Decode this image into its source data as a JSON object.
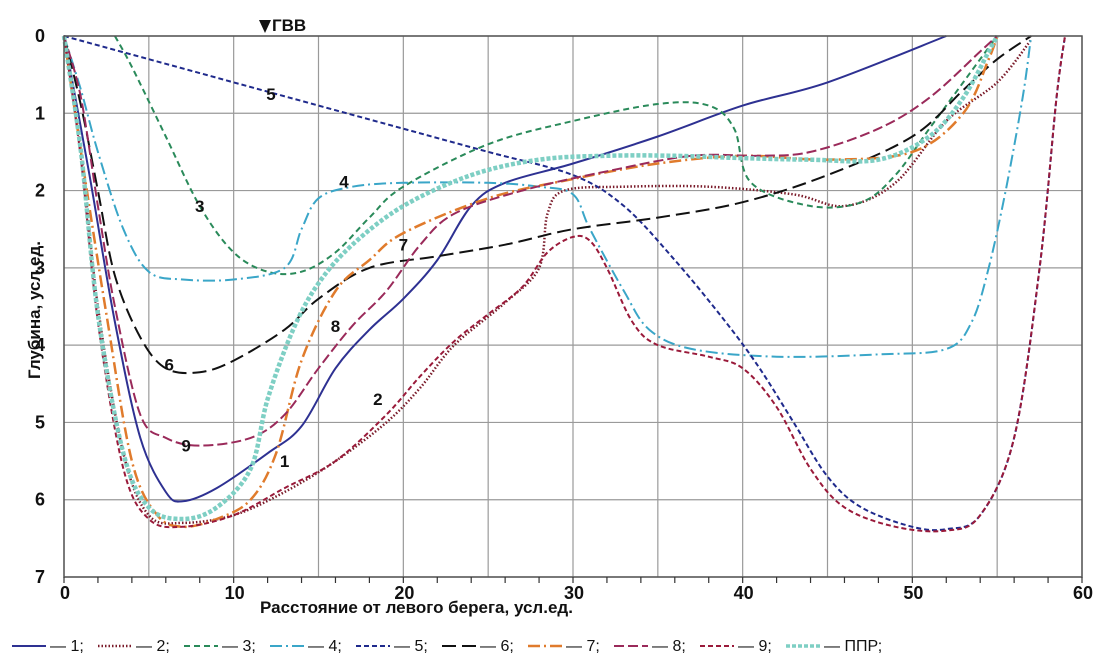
{
  "chart_data": {
    "type": "line",
    "xlabel": "Расстояние от левого берега, усл.ед.",
    "ylabel": "Глубина, усл.ед.",
    "xlim": [
      0,
      60
    ],
    "ylim": [
      0,
      7
    ],
    "y_inverted": true,
    "grid": true,
    "x_ticks": [
      "0",
      "10",
      "20",
      "30",
      "40",
      "50",
      "60"
    ],
    "y_ticks": [
      "0",
      "1",
      "2",
      "3",
      "4",
      "5",
      "6",
      "7"
    ],
    "marker": {
      "label": "ГВВ",
      "x": 12
    },
    "legend_position": "bottom",
    "series": [
      {
        "name": "— 1;",
        "label": "1",
        "label_pos": [
          13,
          5.5
        ],
        "color": "#2e3192",
        "dash": "",
        "width": 2,
        "points": [
          [
            0,
            0
          ],
          [
            1.5,
            1.8
          ],
          [
            3,
            3.7
          ],
          [
            4.5,
            5.2
          ],
          [
            6,
            5.9
          ],
          [
            7,
            6.02
          ],
          [
            9,
            5.85
          ],
          [
            12,
            5.4
          ],
          [
            14,
            5.05
          ],
          [
            16,
            4.3
          ],
          [
            18,
            3.8
          ],
          [
            20,
            3.4
          ],
          [
            22,
            2.9
          ],
          [
            24,
            2.2
          ],
          [
            26,
            1.9
          ],
          [
            30,
            1.65
          ],
          [
            35,
            1.3
          ],
          [
            40,
            0.9
          ],
          [
            45,
            0.6
          ],
          [
            52,
            0
          ]
        ]
      },
      {
        "name": "— 2;",
        "label": "2",
        "label_pos": [
          18.5,
          4.7
        ],
        "color": "#7a1b2a",
        "dash": "1.5 2",
        "width": 2.5,
        "points": [
          [
            0,
            0
          ],
          [
            1,
            1.5
          ],
          [
            2,
            3.5
          ],
          [
            3.5,
            5.4
          ],
          [
            5,
            6.2
          ],
          [
            7,
            6.3
          ],
          [
            10,
            6.2
          ],
          [
            13,
            5.9
          ],
          [
            16,
            5.5
          ],
          [
            19,
            5.0
          ],
          [
            21,
            4.55
          ],
          [
            23,
            4.0
          ],
          [
            26,
            3.45
          ],
          [
            28,
            3.0
          ],
          [
            28.5,
            2.3
          ],
          [
            29.5,
            2.0
          ],
          [
            33,
            1.95
          ],
          [
            38,
            1.95
          ],
          [
            43,
            2.05
          ],
          [
            46,
            2.2
          ],
          [
            49,
            1.9
          ],
          [
            52,
            1.1
          ],
          [
            55,
            0.6
          ],
          [
            57,
            0.05
          ]
        ]
      },
      {
        "name": "— 3;",
        "label": "3",
        "label_pos": [
          8,
          2.2
        ],
        "color": "#2a8a5a",
        "dash": "6 4",
        "width": 2,
        "points": [
          [
            3,
            0
          ],
          [
            4,
            0.4
          ],
          [
            6,
            1.3
          ],
          [
            8,
            2.2
          ],
          [
            10,
            2.8
          ],
          [
            12,
            3.05
          ],
          [
            14,
            3.05
          ],
          [
            16,
            2.8
          ],
          [
            18,
            2.35
          ],
          [
            20,
            1.95
          ],
          [
            25,
            1.4
          ],
          [
            30,
            1.1
          ],
          [
            35,
            0.88
          ],
          [
            38,
            0.9
          ],
          [
            39.5,
            1.2
          ],
          [
            40.5,
            1.9
          ],
          [
            44,
            2.2
          ],
          [
            47,
            2.15
          ],
          [
            49,
            1.8
          ],
          [
            51,
            1.2
          ],
          [
            53,
            0.6
          ],
          [
            55,
            0
          ]
        ]
      },
      {
        "name": "— 4;",
        "label": "4",
        "label_pos": [
          16.5,
          1.88
        ],
        "color": "#3aa6c8",
        "dash": "12 4 2 4",
        "width": 2,
        "points": [
          [
            0,
            0
          ],
          [
            1,
            0.7
          ],
          [
            2,
            1.5
          ],
          [
            3.5,
            2.5
          ],
          [
            5,
            3.05
          ],
          [
            7,
            3.15
          ],
          [
            10,
            3.15
          ],
          [
            13,
            3.0
          ],
          [
            14,
            2.5
          ],
          [
            15,
            2.1
          ],
          [
            17,
            1.95
          ],
          [
            20,
            1.9
          ],
          [
            25,
            1.9
          ],
          [
            28,
            1.95
          ],
          [
            30,
            2.05
          ],
          [
            31,
            2.5
          ],
          [
            33,
            3.3
          ],
          [
            34.5,
            3.8
          ],
          [
            37,
            4.05
          ],
          [
            42,
            4.15
          ],
          [
            48,
            4.12
          ],
          [
            52,
            4.05
          ],
          [
            53.5,
            3.7
          ],
          [
            54.5,
            3.0
          ],
          [
            55.5,
            2.0
          ],
          [
            56.5,
            0.8
          ],
          [
            57,
            0
          ]
        ]
      },
      {
        "name": "— 5;",
        "label": "5",
        "label_pos": [
          12.2,
          0.75
        ],
        "color": "#1f2a8c",
        "dash": "5 3",
        "width": 2,
        "points": [
          [
            0,
            0
          ],
          [
            5,
            0.3
          ],
          [
            10,
            0.6
          ],
          [
            15,
            0.9
          ],
          [
            20,
            1.2
          ],
          [
            25,
            1.5
          ],
          [
            30,
            1.8
          ],
          [
            33,
            2.2
          ],
          [
            36,
            2.9
          ],
          [
            39,
            3.7
          ],
          [
            41,
            4.3
          ],
          [
            43,
            5.0
          ],
          [
            45,
            5.7
          ],
          [
            47,
            6.1
          ],
          [
            50,
            6.35
          ],
          [
            52,
            6.38
          ],
          [
            54,
            6.2
          ],
          [
            56,
            5.2
          ],
          [
            57.5,
            3.0
          ],
          [
            58.5,
            0.8
          ],
          [
            59,
            0
          ]
        ]
      },
      {
        "name": "— 6;",
        "label": "6",
        "label_pos": [
          6.2,
          4.25
        ],
        "color": "#111111",
        "dash": "14 6",
        "width": 2,
        "points": [
          [
            0,
            0
          ],
          [
            1,
            0.9
          ],
          [
            2,
            2.0
          ],
          [
            3,
            3.1
          ],
          [
            4.5,
            3.9
          ],
          [
            6,
            4.3
          ],
          [
            8,
            4.35
          ],
          [
            10,
            4.2
          ],
          [
            13,
            3.8
          ],
          [
            15,
            3.4
          ],
          [
            18,
            3.0
          ],
          [
            22,
            2.85
          ],
          [
            26,
            2.7
          ],
          [
            30,
            2.5
          ],
          [
            35,
            2.35
          ],
          [
            40,
            2.15
          ],
          [
            45,
            1.8
          ],
          [
            50,
            1.3
          ],
          [
            53,
            0.7
          ],
          [
            55,
            0.3
          ],
          [
            57,
            0
          ]
        ]
      },
      {
        "name": "— 7;",
        "label": "7",
        "label_pos": [
          20,
          2.7
        ],
        "color": "#e07b2c",
        "dash": "12 4 2 4",
        "width": 2.5,
        "points": [
          [
            0,
            0
          ],
          [
            1,
            1.5
          ],
          [
            2.5,
            3.6
          ],
          [
            4,
            5.5
          ],
          [
            5.5,
            6.2
          ],
          [
            7,
            6.35
          ],
          [
            9,
            6.25
          ],
          [
            11,
            6.0
          ],
          [
            12.5,
            5.4
          ],
          [
            14,
            4.2
          ],
          [
            16,
            3.3
          ],
          [
            18,
            2.9
          ],
          [
            20,
            2.55
          ],
          [
            25,
            2.1
          ],
          [
            30,
            1.85
          ],
          [
            35,
            1.65
          ],
          [
            40,
            1.55
          ],
          [
            45,
            1.6
          ],
          [
            50,
            1.5
          ],
          [
            53,
            1.0
          ],
          [
            54.5,
            0.3
          ],
          [
            55,
            0
          ]
        ]
      },
      {
        "name": "— 8;",
        "label": "8",
        "label_pos": [
          16,
          3.75
        ],
        "color": "#9a2a5a",
        "dash": "10 4",
        "width": 2,
        "points": [
          [
            0,
            0
          ],
          [
            1,
            0.8
          ],
          [
            2,
            2.2
          ],
          [
            3,
            3.5
          ],
          [
            4.5,
            4.9
          ],
          [
            6,
            5.2
          ],
          [
            8,
            5.3
          ],
          [
            11,
            5.2
          ],
          [
            13,
            4.9
          ],
          [
            15,
            4.3
          ],
          [
            17,
            3.75
          ],
          [
            19,
            3.3
          ],
          [
            21,
            2.7
          ],
          [
            23,
            2.3
          ],
          [
            27,
            2.0
          ],
          [
            32,
            1.75
          ],
          [
            37,
            1.55
          ],
          [
            41,
            1.55
          ],
          [
            44,
            1.5
          ],
          [
            48,
            1.2
          ],
          [
            51,
            0.8
          ],
          [
            54,
            0.2
          ],
          [
            55,
            0
          ]
        ]
      },
      {
        "name": "— 9;",
        "label": "9",
        "label_pos": [
          7.2,
          5.3
        ],
        "color": "#9a1a3a",
        "dash": "5 3",
        "width": 2,
        "points": [
          [
            0,
            0
          ],
          [
            1,
            1.6
          ],
          [
            2,
            3.7
          ],
          [
            3.5,
            5.6
          ],
          [
            5,
            6.25
          ],
          [
            7,
            6.35
          ],
          [
            10,
            6.2
          ],
          [
            13,
            5.85
          ],
          [
            16,
            5.5
          ],
          [
            19,
            4.9
          ],
          [
            21,
            4.4
          ],
          [
            23,
            3.95
          ],
          [
            25,
            3.6
          ],
          [
            27,
            3.25
          ],
          [
            28.5,
            2.8
          ],
          [
            30,
            2.6
          ],
          [
            31,
            2.65
          ],
          [
            32,
            3.0
          ],
          [
            33.5,
            3.7
          ],
          [
            35,
            4.0
          ],
          [
            38,
            4.15
          ],
          [
            40,
            4.3
          ],
          [
            42,
            4.8
          ],
          [
            44,
            5.6
          ],
          [
            46,
            6.1
          ],
          [
            49,
            6.35
          ],
          [
            52,
            6.4
          ],
          [
            54,
            6.2
          ],
          [
            56,
            5.2
          ],
          [
            57.5,
            3.0
          ],
          [
            58.5,
            0.8
          ],
          [
            59,
            0
          ]
        ]
      },
      {
        "name": "— ППР;",
        "label": "",
        "color": "#7ecfc4",
        "dash": "4 2",
        "width": 4.5,
        "points": [
          [
            0,
            0
          ],
          [
            1,
            1.5
          ],
          [
            2,
            3.6
          ],
          [
            3.5,
            5.4
          ],
          [
            5,
            6.1
          ],
          [
            7,
            6.25
          ],
          [
            9,
            6.1
          ],
          [
            11,
            5.6
          ],
          [
            12,
            4.7
          ],
          [
            13.5,
            3.8
          ],
          [
            15,
            3.2
          ],
          [
            17,
            2.7
          ],
          [
            20,
            2.2
          ],
          [
            24,
            1.8
          ],
          [
            28,
            1.6
          ],
          [
            32,
            1.55
          ],
          [
            36,
            1.55
          ],
          [
            40,
            1.58
          ],
          [
            44,
            1.6
          ],
          [
            48,
            1.6
          ],
          [
            51,
            1.3
          ],
          [
            53,
            0.8
          ],
          [
            54.5,
            0.2
          ],
          [
            55,
            0
          ]
        ]
      }
    ]
  }
}
